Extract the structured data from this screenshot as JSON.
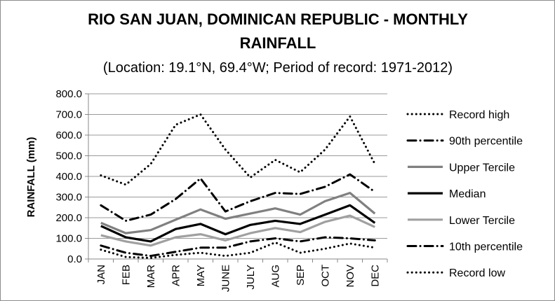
{
  "chart_data": {
    "type": "line",
    "title_line1": "RIO SAN JUAN, DOMINICAN REPUBLIC - MONTHLY",
    "title_line2": "RAINFALL",
    "subtitle": "(Location: 19.1°N, 69.4°W; Period of record: 1971-2012)",
    "ylabel": "RAINFALL (mm)",
    "xlabel": "",
    "categories": [
      "JAN",
      "FEB",
      "MAR",
      "APR",
      "MAY",
      "JUNE",
      "JULY",
      "AUG",
      "SEP",
      "OCT",
      "NOV",
      "DEC"
    ],
    "ylim": [
      0,
      800
    ],
    "yticks": [
      "0.0",
      "100.0",
      "200.0",
      "300.0",
      "400.0",
      "500.0",
      "600.0",
      "700.0",
      "800.0"
    ],
    "grid": "horizontal",
    "legend_position": "right",
    "series": [
      {
        "name": "Record high",
        "style": "dotted",
        "color": "#000000",
        "values": [
          405,
          360,
          460,
          650,
          700,
          530,
          395,
          480,
          420,
          530,
          690,
          460
        ]
      },
      {
        "name": "90th percentile",
        "style": "dashdot",
        "color": "#000000",
        "values": [
          260,
          185,
          215,
          290,
          390,
          230,
          280,
          320,
          315,
          350,
          410,
          325
        ]
      },
      {
        "name": "Upper Tercile",
        "style": "solid",
        "color": "#808080",
        "values": [
          175,
          125,
          140,
          190,
          240,
          195,
          220,
          245,
          215,
          280,
          320,
          220
        ]
      },
      {
        "name": "Median",
        "style": "solid",
        "color": "#000000",
        "values": [
          160,
          105,
          85,
          145,
          170,
          120,
          165,
          185,
          170,
          215,
          260,
          175
        ]
      },
      {
        "name": "Lower Tercile",
        "style": "solid",
        "color": "#a0a0a0",
        "values": [
          115,
          85,
          65,
          105,
          120,
          90,
          125,
          150,
          130,
          180,
          210,
          155
        ]
      },
      {
        "name": "10th percentile",
        "style": "dashdot",
        "color": "#000000",
        "values": [
          65,
          30,
          15,
          35,
          55,
          55,
          85,
          100,
          85,
          105,
          100,
          90
        ]
      },
      {
        "name": "Record low",
        "style": "dotted",
        "color": "#000000",
        "values": [
          45,
          10,
          5,
          20,
          30,
          15,
          30,
          80,
          30,
          50,
          75,
          55
        ]
      }
    ]
  }
}
